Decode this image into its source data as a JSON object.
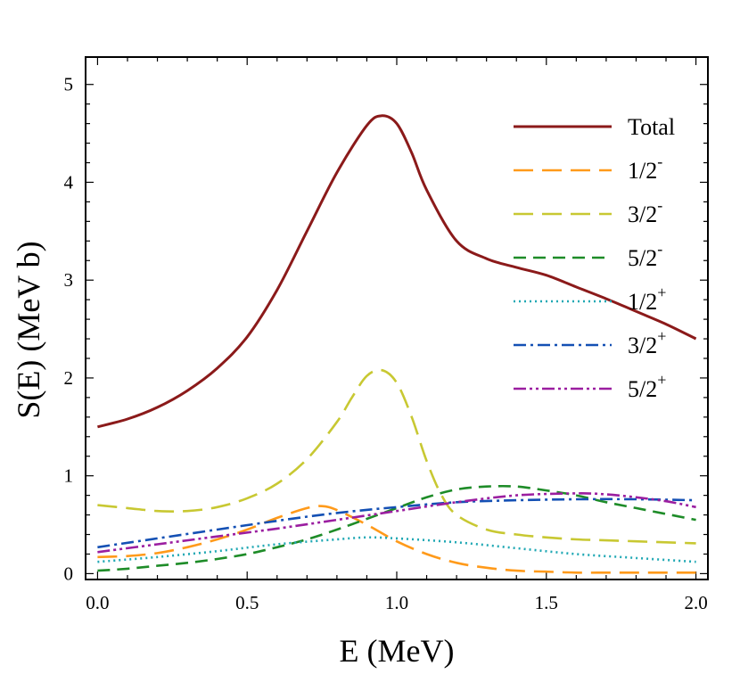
{
  "chart_data": {
    "type": "line",
    "xlabel": "E (MeV)",
    "ylabel": "S(E) (MeV b)",
    "xlim": [
      -0.04,
      2.04
    ],
    "ylim": [
      -0.06,
      5.28
    ],
    "x_ticks": [
      "0.0",
      "0.5",
      "1.0",
      "1.5",
      "2.0"
    ],
    "y_ticks": [
      "0",
      "1",
      "2",
      "3",
      "4",
      "5"
    ],
    "grid": false,
    "legend_position": "top-right",
    "series": [
      {
        "name": "Total",
        "color": "#8b1a1a",
        "dash": "solid",
        "legend_text": "Total",
        "legend_sup": "",
        "x": [
          0.0,
          0.1,
          0.2,
          0.3,
          0.4,
          0.5,
          0.6,
          0.7,
          0.8,
          0.9,
          0.95,
          1.0,
          1.05,
          1.1,
          1.2,
          1.3,
          1.4,
          1.5,
          1.6,
          1.7,
          1.8,
          1.9,
          2.0
        ],
        "y": [
          1.5,
          1.58,
          1.7,
          1.87,
          2.1,
          2.42,
          2.9,
          3.5,
          4.1,
          4.58,
          4.68,
          4.6,
          4.3,
          3.92,
          3.4,
          3.22,
          3.13,
          3.05,
          2.93,
          2.81,
          2.68,
          2.55,
          2.4
        ]
      },
      {
        "name": "1/2-",
        "color": "#ff9a1a",
        "dash": "long",
        "legend_text": "1/2",
        "legend_sup": "-",
        "x": [
          0.0,
          0.1,
          0.2,
          0.3,
          0.4,
          0.5,
          0.6,
          0.7,
          0.75,
          0.8,
          0.9,
          1.0,
          1.1,
          1.2,
          1.3,
          1.4,
          1.5,
          1.6,
          1.7,
          1.8,
          1.9,
          2.0
        ],
        "y": [
          0.17,
          0.18,
          0.21,
          0.27,
          0.35,
          0.45,
          0.57,
          0.67,
          0.69,
          0.65,
          0.5,
          0.33,
          0.2,
          0.11,
          0.06,
          0.03,
          0.02,
          0.01,
          0.01,
          0.01,
          0.01,
          0.01
        ]
      },
      {
        "name": "3/2-",
        "color": "#c8c832",
        "dash": "long",
        "legend_text": "3/2",
        "legend_sup": "-",
        "x": [
          0.0,
          0.1,
          0.2,
          0.3,
          0.4,
          0.5,
          0.6,
          0.7,
          0.8,
          0.85,
          0.9,
          0.95,
          1.0,
          1.05,
          1.1,
          1.15,
          1.2,
          1.3,
          1.4,
          1.5,
          1.6,
          1.7,
          1.8,
          1.9,
          2.0
        ],
        "y": [
          0.7,
          0.67,
          0.64,
          0.64,
          0.68,
          0.77,
          0.92,
          1.17,
          1.55,
          1.8,
          2.02,
          2.08,
          1.95,
          1.6,
          1.15,
          0.8,
          0.6,
          0.45,
          0.4,
          0.37,
          0.35,
          0.34,
          0.33,
          0.32,
          0.31
        ]
      },
      {
        "name": "5/2-",
        "color": "#1e8c28",
        "dash": "medium",
        "legend_text": "5/2",
        "legend_sup": "-",
        "x": [
          0.0,
          0.1,
          0.2,
          0.3,
          0.4,
          0.5,
          0.6,
          0.7,
          0.8,
          0.9,
          1.0,
          1.1,
          1.2,
          1.3,
          1.4,
          1.5,
          1.6,
          1.7,
          1.8,
          1.9,
          2.0
        ],
        "y": [
          0.03,
          0.05,
          0.08,
          0.11,
          0.15,
          0.2,
          0.27,
          0.35,
          0.45,
          0.56,
          0.67,
          0.78,
          0.86,
          0.89,
          0.89,
          0.85,
          0.8,
          0.73,
          0.67,
          0.61,
          0.55
        ]
      },
      {
        "name": "1/2+",
        "color": "#20a8b4",
        "dash": "dot",
        "legend_text": "1/2",
        "legend_sup": "+",
        "x": [
          0.0,
          0.2,
          0.4,
          0.6,
          0.8,
          0.9,
          1.0,
          1.2,
          1.4,
          1.6,
          1.8,
          2.0
        ],
        "y": [
          0.12,
          0.17,
          0.23,
          0.3,
          0.35,
          0.37,
          0.36,
          0.32,
          0.26,
          0.2,
          0.16,
          0.12
        ]
      },
      {
        "name": "3/2+",
        "color": "#1450b4",
        "dash": "dashdot",
        "legend_text": "3/2",
        "legend_sup": "+",
        "x": [
          0.0,
          0.2,
          0.4,
          0.6,
          0.8,
          1.0,
          1.2,
          1.4,
          1.6,
          1.8,
          2.0
        ],
        "y": [
          0.27,
          0.36,
          0.45,
          0.54,
          0.62,
          0.68,
          0.73,
          0.75,
          0.76,
          0.76,
          0.75
        ]
      },
      {
        "name": "5/2+",
        "color": "#9b1ea0",
        "dash": "dashdotdot",
        "legend_text": "5/2",
        "legend_sup": "+",
        "x": [
          0.0,
          0.2,
          0.4,
          0.6,
          0.8,
          1.0,
          1.2,
          1.4,
          1.6,
          1.7,
          1.8,
          1.9,
          2.0
        ],
        "y": [
          0.22,
          0.3,
          0.38,
          0.46,
          0.55,
          0.64,
          0.73,
          0.8,
          0.82,
          0.81,
          0.78,
          0.74,
          0.68
        ]
      }
    ]
  }
}
